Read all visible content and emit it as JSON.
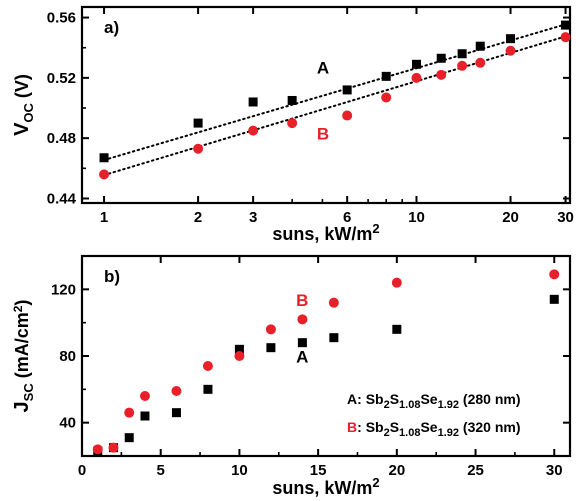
{
  "colors": {
    "A": "#000000",
    "B": "#e8202a"
  },
  "chart_data": [
    {
      "type": "scatter",
      "panel_label": "a)",
      "xlabel": {
        "base": "suns, kW/m",
        "sup": "2"
      },
      "ylabel": {
        "base": "V",
        "sub": "OC",
        "tail": " (V)"
      },
      "x_scale": "log",
      "xlim": [
        0.85,
        31
      ],
      "ylim": [
        0.437,
        0.567
      ],
      "xticks": [
        1,
        2,
        3,
        6,
        10,
        20,
        30
      ],
      "xtick_labels": [
        "1",
        "2",
        "3",
        "6",
        "10",
        "20",
        "30"
      ],
      "yticks": [
        0.44,
        0.48,
        0.52,
        0.56
      ],
      "ytick_labels": [
        "0.44",
        "0.48",
        "0.52",
        "0.56"
      ],
      "grid": false,
      "series": [
        {
          "name": "A",
          "marker": "square",
          "color": "#000000",
          "x": [
            1,
            2,
            3,
            4,
            6,
            8,
            10,
            12,
            14,
            16,
            20,
            30
          ],
          "y": [
            0.467,
            0.49,
            0.504,
            0.505,
            0.512,
            0.521,
            0.529,
            0.533,
            0.536,
            0.541,
            0.546,
            0.555
          ]
        },
        {
          "name": "B",
          "marker": "circle",
          "color": "#e8202a",
          "x": [
            1,
            2,
            3,
            4,
            6,
            8,
            10,
            12,
            14,
            16,
            20,
            30
          ],
          "y": [
            0.456,
            0.473,
            0.485,
            0.49,
            0.495,
            0.507,
            0.52,
            0.522,
            0.528,
            0.53,
            0.538,
            0.547
          ]
        }
      ],
      "fits": [
        {
          "series": "A",
          "x": [
            1,
            30
          ],
          "y": [
            0.4655,
            0.5555
          ]
        },
        {
          "series": "B",
          "x": [
            1,
            30
          ],
          "y": [
            0.4555,
            0.5475
          ]
        }
      ],
      "annotations": [
        {
          "text": "A",
          "x": 4.8,
          "y": 0.523,
          "color": "#000000"
        },
        {
          "text": "B",
          "x": 4.8,
          "y": 0.479,
          "color": "#e8202a"
        }
      ]
    },
    {
      "type": "scatter",
      "panel_label": "b)",
      "xlabel": {
        "base": "suns, kW/m",
        "sup": "2"
      },
      "ylabel": {
        "base": "J",
        "sub": "SC",
        "tail": " (mA/cm",
        "sup": "2",
        "end": ")"
      },
      "x_scale": "linear",
      "xlim": [
        0,
        31
      ],
      "ylim": [
        20,
        140
      ],
      "xticks": [
        0,
        5,
        10,
        15,
        20,
        25,
        30
      ],
      "xtick_labels": [
        "0",
        "5",
        "10",
        "15",
        "20",
        "25",
        "30"
      ],
      "yticks": [
        40,
        80,
        120
      ],
      "ytick_labels": [
        "40",
        "80",
        "120"
      ],
      "grid": false,
      "series": [
        {
          "name": "A",
          "marker": "square",
          "color": "#000000",
          "x": [
            1,
            2,
            3,
            4,
            6,
            8,
            10,
            12,
            14,
            16,
            20,
            30
          ],
          "y": [
            23,
            25,
            31,
            44,
            46,
            60,
            84,
            85,
            88,
            91,
            96,
            114
          ]
        },
        {
          "name": "B",
          "marker": "circle",
          "color": "#e8202a",
          "x": [
            1,
            2,
            3,
            4,
            6,
            8,
            10,
            12,
            14,
            16,
            20,
            30
          ],
          "y": [
            24,
            25,
            46,
            56,
            59,
            74,
            80,
            96,
            102,
            112,
            124,
            129
          ]
        }
      ],
      "annotations": [
        {
          "text": "B",
          "x": 13.6,
          "y": 110,
          "color": "#e8202a"
        },
        {
          "text": "A",
          "x": 13.6,
          "y": 76,
          "color": "#000000"
        }
      ],
      "legend": [
        {
          "key": "A",
          "formula": [
            "Sb",
            "2",
            "S",
            "1.08",
            "Se",
            "1.92"
          ],
          "thickness": "(280 nm)"
        },
        {
          "key": "B",
          "formula": [
            "Sb",
            "2",
            "S",
            "1.08",
            "Se",
            "1.92"
          ],
          "thickness": "(320 nm)"
        }
      ]
    }
  ]
}
